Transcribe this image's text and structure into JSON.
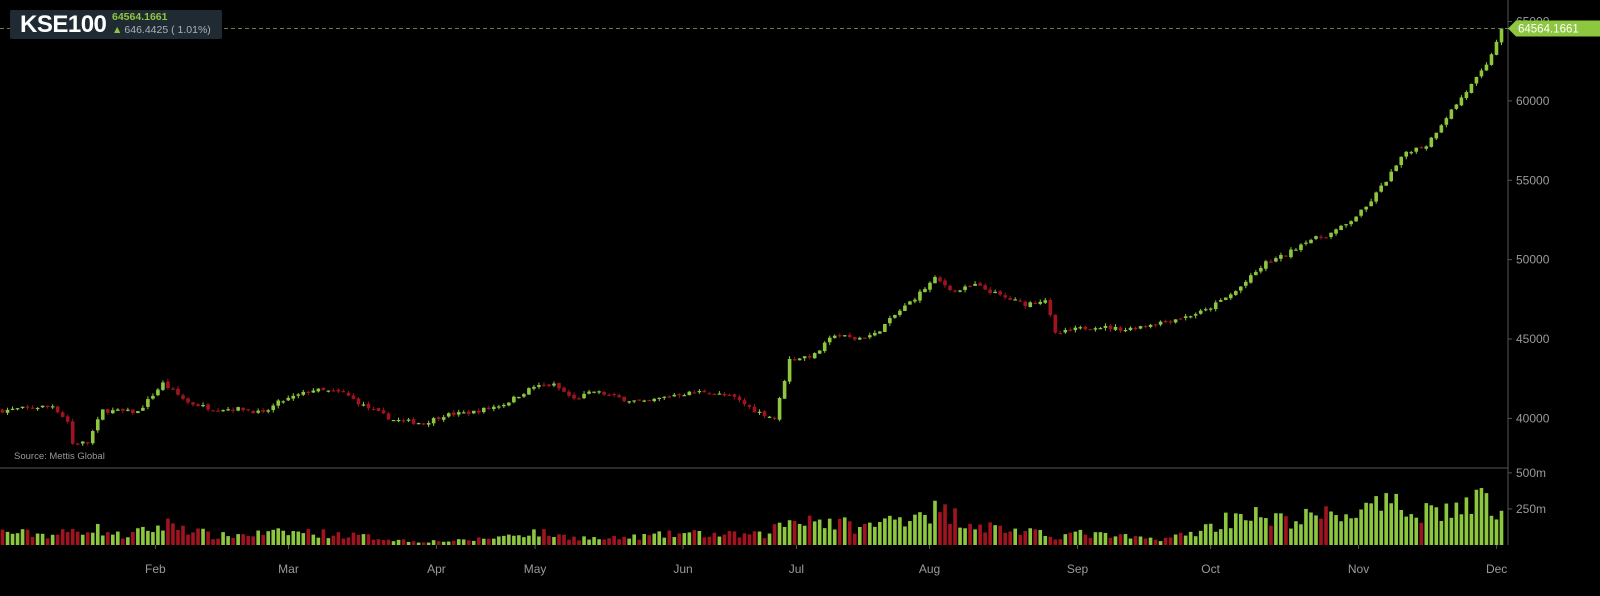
{
  "header": {
    "symbol": "KSE100",
    "last_price": "64564.1661",
    "change_text": "646.4425 ( 1.01%)",
    "change_direction": "up"
  },
  "source_text": "Source: Mettis Global",
  "price_tag": "64564.1661",
  "colors": {
    "up": "#8dc63f",
    "down": "#a01420",
    "grid": "#555555",
    "background": "#000000"
  },
  "chart_data": {
    "type": "candlestick",
    "title": "",
    "price_axis": {
      "ticks": [
        40000,
        45000,
        50000,
        55000,
        60000,
        65000
      ],
      "ylim": [
        37000,
        65600
      ]
    },
    "volume_axis": {
      "ticks": [
        "250m",
        "500m"
      ],
      "tick_values": [
        250,
        500
      ],
      "unit": "m",
      "ylim": [
        0,
        520
      ]
    },
    "x_axis": {
      "labels": [
        "Feb",
        "Mar",
        "Apr",
        "May",
        "Jun",
        "Jul",
        "Aug",
        "Sep",
        "Oct",
        "Nov",
        "Dec"
      ]
    },
    "last_value": 64564.1661,
    "price_waypoints": [
      [
        0,
        40500
      ],
      [
        10,
        40800
      ],
      [
        13,
        39800
      ],
      [
        14,
        38400
      ],
      [
        17,
        38500
      ],
      [
        20,
        40500
      ],
      [
        27,
        40400
      ],
      [
        32,
        42200
      ],
      [
        37,
        41000
      ],
      [
        42,
        40600
      ],
      [
        48,
        40600
      ],
      [
        52,
        40300
      ],
      [
        55,
        41000
      ],
      [
        62,
        41800
      ],
      [
        68,
        41600
      ],
      [
        72,
        40800
      ],
      [
        78,
        39900
      ],
      [
        84,
        39700
      ],
      [
        88,
        40200
      ],
      [
        94,
        40400
      ],
      [
        100,
        40900
      ],
      [
        106,
        42000
      ],
      [
        110,
        42100
      ],
      [
        114,
        41200
      ],
      [
        118,
        41700
      ],
      [
        124,
        41200
      ],
      [
        128,
        41000
      ],
      [
        134,
        41500
      ],
      [
        140,
        41700
      ],
      [
        146,
        41300
      ],
      [
        150,
        40500
      ],
      [
        154,
        40000
      ],
      [
        155,
        41200
      ],
      [
        157,
        43700
      ],
      [
        162,
        44000
      ],
      [
        166,
        45300
      ],
      [
        170,
        45000
      ],
      [
        174,
        45300
      ],
      [
        178,
        46500
      ],
      [
        182,
        47600
      ],
      [
        186,
        48800
      ],
      [
        190,
        48000
      ],
      [
        194,
        48400
      ],
      [
        200,
        47600
      ],
      [
        204,
        47200
      ],
      [
        208,
        47500
      ],
      [
        210,
        45300
      ],
      [
        214,
        45600
      ],
      [
        218,
        45800
      ],
      [
        224,
        45600
      ],
      [
        230,
        46000
      ],
      [
        236,
        46400
      ],
      [
        240,
        46800
      ],
      [
        246,
        48000
      ],
      [
        252,
        49800
      ],
      [
        256,
        50300
      ],
      [
        260,
        51200
      ],
      [
        264,
        51500
      ],
      [
        268,
        52200
      ],
      [
        272,
        53300
      ],
      [
        276,
        55000
      ],
      [
        280,
        56800
      ],
      [
        284,
        57200
      ],
      [
        288,
        59000
      ],
      [
        292,
        60600
      ],
      [
        296,
        62200
      ],
      [
        299,
        64564
      ]
    ],
    "volume_waypoints": [
      [
        0,
        90
      ],
      [
        10,
        70
      ],
      [
        18,
        120
      ],
      [
        24,
        60
      ],
      [
        34,
        150
      ],
      [
        42,
        60
      ],
      [
        52,
        80
      ],
      [
        60,
        90
      ],
      [
        72,
        60
      ],
      [
        82,
        25
      ],
      [
        92,
        30
      ],
      [
        100,
        60
      ],
      [
        106,
        90
      ],
      [
        112,
        60
      ],
      [
        120,
        40
      ],
      [
        128,
        60
      ],
      [
        136,
        80
      ],
      [
        144,
        70
      ],
      [
        152,
        70
      ],
      [
        155,
        140
      ],
      [
        160,
        200
      ],
      [
        166,
        150
      ],
      [
        172,
        120
      ],
      [
        178,
        180
      ],
      [
        184,
        250
      ],
      [
        190,
        200
      ],
      [
        196,
        130
      ],
      [
        204,
        90
      ],
      [
        210,
        60
      ],
      [
        214,
        80
      ],
      [
        222,
        60
      ],
      [
        230,
        40
      ],
      [
        236,
        70
      ],
      [
        242,
        140
      ],
      [
        248,
        240
      ],
      [
        252,
        160
      ],
      [
        258,
        180
      ],
      [
        264,
        200
      ],
      [
        268,
        220
      ],
      [
        272,
        240
      ],
      [
        276,
        260
      ],
      [
        282,
        250
      ],
      [
        288,
        240
      ],
      [
        294,
        280
      ],
      [
        296,
        430
      ],
      [
        298,
        180
      ]
    ]
  }
}
